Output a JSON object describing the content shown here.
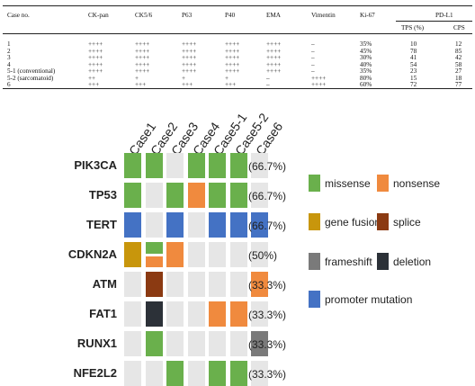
{
  "table": {
    "headers": {
      "case_no": "Case no.",
      "ck_pan": "CK-pan",
      "ck56": "CK5/6",
      "p63": "P63",
      "p40": "P40",
      "ema": "EMA",
      "vimentin": "Vimentin",
      "ki67": "Ki-67",
      "pdl1": "PD-L1",
      "tps": "TPS (%)",
      "cps": "CPS"
    },
    "rows": [
      {
        "case": "1",
        "ck_pan": "++++",
        "ck56": "++++",
        "p63": "++++",
        "p40": "++++",
        "ema": "++++",
        "vimentin": "–",
        "ki67": "35%",
        "tps": "10",
        "cps": "12"
      },
      {
        "case": "2",
        "ck_pan": "++++",
        "ck56": "++++",
        "p63": "++++",
        "p40": "++++",
        "ema": "++++",
        "vimentin": "–",
        "ki67": "45%",
        "tps": "78",
        "cps": "85"
      },
      {
        "case": "3",
        "ck_pan": "++++",
        "ck56": "++++",
        "p63": "++++",
        "p40": "++++",
        "ema": "++++",
        "vimentin": "–",
        "ki67": "30%",
        "tps": "41",
        "cps": "42"
      },
      {
        "case": "4",
        "ck_pan": "++++",
        "ck56": "++++",
        "p63": "++++",
        "p40": "++++",
        "ema": "++++",
        "vimentin": "–",
        "ki67": "40%",
        "tps": "54",
        "cps": "58"
      },
      {
        "case": "5-1 (conventional)",
        "ck_pan": "++++",
        "ck56": "++++",
        "p63": "++++",
        "p40": "++++",
        "ema": "++++",
        "vimentin": "–",
        "ki67": "35%",
        "tps": "23",
        "cps": "27"
      },
      {
        "case": "5-2 (sarcomatoid)",
        "ck_pan": "++",
        "ck56": "+",
        "p63": "+",
        "p40": "+",
        "ema": "–",
        "vimentin": "++++",
        "ki67": "80%",
        "tps": "15",
        "cps": "18"
      },
      {
        "case": "6",
        "ck_pan": "+++",
        "ck56": "+++",
        "p63": "+++",
        "p40": "+++",
        "ema": "–",
        "vimentin": "++++",
        "ki67": "60%",
        "tps": "72",
        "cps": "77"
      }
    ]
  },
  "oncoplot": {
    "cases": [
      "Case1",
      "Case2",
      "Case3",
      "Case4",
      "Case5-1",
      "Case5-2",
      "Case6"
    ],
    "genes": [
      {
        "name": "PIK3CA",
        "pct": "(66.7%)",
        "cells": [
          [
            "missense"
          ],
          [
            "missense"
          ],
          [],
          [
            "missense"
          ],
          [
            "missense"
          ],
          [
            "missense"
          ],
          []
        ]
      },
      {
        "name": "TP53",
        "pct": "(66.7%)",
        "cells": [
          [
            "missense"
          ],
          [],
          [
            "missense"
          ],
          [
            "nonsense"
          ],
          [
            "missense"
          ],
          [
            "missense"
          ],
          []
        ]
      },
      {
        "name": "TERT",
        "pct": "(66.7%)",
        "cells": [
          [
            "promoter mutation"
          ],
          [],
          [
            "promoter mutation"
          ],
          [],
          [
            "promoter mutation"
          ],
          [
            "promoter mutation"
          ],
          [
            "promoter mutation"
          ]
        ]
      },
      {
        "name": "CDKN2A",
        "pct": "(50%)",
        "cells": [
          [
            "gene fusion"
          ],
          [
            "missense",
            "nonsense"
          ],
          [
            "nonsense"
          ],
          [],
          [],
          [],
          []
        ]
      },
      {
        "name": "ATM",
        "pct": "(33.3%)",
        "cells": [
          [],
          [
            "splice"
          ],
          [],
          [],
          [],
          [],
          [
            "nonsense"
          ]
        ]
      },
      {
        "name": "FAT1",
        "pct": "(33.3%)",
        "cells": [
          [],
          [
            "deletion"
          ],
          [],
          [],
          [
            "nonsense"
          ],
          [
            "nonsense"
          ],
          []
        ]
      },
      {
        "name": "RUNX1",
        "pct": "(33.3%)",
        "cells": [
          [],
          [
            "missense"
          ],
          [],
          [],
          [],
          [],
          [
            "frameshift"
          ]
        ]
      },
      {
        "name": "NFE2L2",
        "pct": "(33.3%)",
        "cells": [
          [],
          [],
          [
            "missense"
          ],
          [],
          [
            "missense"
          ],
          [
            "missense"
          ],
          []
        ]
      }
    ],
    "legend": [
      {
        "key": "missense",
        "label": "missense"
      },
      {
        "key": "nonsense",
        "label": "nonsense"
      },
      {
        "key": "gene fusion",
        "label": "gene fusion"
      },
      {
        "key": "splice",
        "label": "splice"
      },
      {
        "key": "frameshift",
        "label": "frameshift"
      },
      {
        "key": "deletion",
        "label": "deletion"
      },
      {
        "key": "promoter mutation",
        "label": "promoter mutation"
      }
    ],
    "colors": {
      "missense": "#6ab04c",
      "nonsense": "#f08a3e",
      "gene fusion": "#c8960c",
      "splice": "#8b3a12",
      "frameshift": "#7a7a7a",
      "deletion": "#2c3138",
      "promoter mutation": "#4472c4",
      "empty": "#e6e6e6"
    }
  }
}
